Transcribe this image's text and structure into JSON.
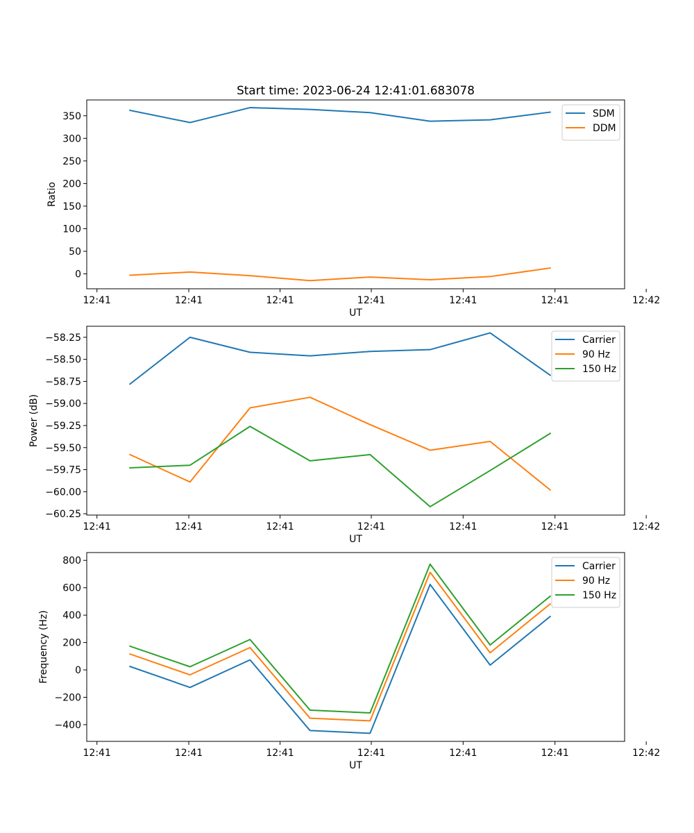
{
  "figure_title": "Start time: 2023-06-24 12:41:01.683078",
  "colors": {
    "blue": "#1f77b4",
    "orange": "#ff7f0e",
    "green": "#2ca02c"
  },
  "chart_data": [
    {
      "type": "line",
      "title": "Start time: 2023-06-24 12:41:01.683078",
      "xlabel": "UT",
      "ylabel": "Ratio",
      "x": [
        1,
        2,
        3,
        4,
        5,
        6,
        7,
        8
      ],
      "xlim": [
        0.28,
        9.24
      ],
      "x_ticks": [
        {
          "pos": 0.45,
          "label": "12:41"
        },
        {
          "pos": 1.98,
          "label": "12:41"
        },
        {
          "pos": 3.5,
          "label": "12:41"
        },
        {
          "pos": 5.02,
          "label": "12:41"
        },
        {
          "pos": 6.55,
          "label": "12:41"
        },
        {
          "pos": 8.08,
          "label": "12:41"
        },
        {
          "pos": 9.6,
          "label": "12:42"
        }
      ],
      "ylim": [
        -33,
        385
      ],
      "y_ticks": [
        {
          "pos": 0,
          "label": "0"
        },
        {
          "pos": 50,
          "label": "50"
        },
        {
          "pos": 100,
          "label": "100"
        },
        {
          "pos": 150,
          "label": "150"
        },
        {
          "pos": 200,
          "label": "200"
        },
        {
          "pos": 250,
          "label": "250"
        },
        {
          "pos": 300,
          "label": "300"
        },
        {
          "pos": 350,
          "label": "350"
        }
      ],
      "legend": "top-right",
      "series": [
        {
          "name": "SDM",
          "color": "#1f77b4",
          "values": [
            362,
            335,
            368,
            364,
            357,
            338,
            341,
            358
          ]
        },
        {
          "name": "DDM",
          "color": "#ff7f0e",
          "values": [
            -3,
            4,
            -4,
            -15,
            -7,
            -13,
            -6,
            13
          ]
        }
      ]
    },
    {
      "type": "line",
      "title": "",
      "xlabel": "UT",
      "ylabel": "Power (dB)",
      "x": [
        1,
        2,
        3,
        4,
        5,
        6,
        7,
        8
      ],
      "xlim": [
        0.28,
        9.24
      ],
      "x_ticks": [
        {
          "pos": 0.45,
          "label": "12:41"
        },
        {
          "pos": 1.98,
          "label": "12:41"
        },
        {
          "pos": 3.5,
          "label": "12:41"
        },
        {
          "pos": 5.02,
          "label": "12:41"
        },
        {
          "pos": 6.55,
          "label": "12:41"
        },
        {
          "pos": 8.08,
          "label": "12:41"
        },
        {
          "pos": 9.6,
          "label": "12:42"
        }
      ],
      "ylim": [
        -60.265,
        -58.125
      ],
      "y_ticks": [
        {
          "pos": -60.25,
          "label": "−60.25"
        },
        {
          "pos": -60.0,
          "label": "−60.00"
        },
        {
          "pos": -59.75,
          "label": "−59.75"
        },
        {
          "pos": -59.5,
          "label": "−59.50"
        },
        {
          "pos": -59.25,
          "label": "−59.25"
        },
        {
          "pos": -59.0,
          "label": "−59.00"
        },
        {
          "pos": -58.75,
          "label": "−58.75"
        },
        {
          "pos": -58.5,
          "label": "−58.50"
        },
        {
          "pos": -58.25,
          "label": "−58.25"
        }
      ],
      "legend": "top-right",
      "series": [
        {
          "name": "Carrier",
          "color": "#1f77b4",
          "values": [
            -58.78,
            -58.25,
            -58.42,
            -58.46,
            -58.41,
            -58.39,
            -58.2,
            -58.68
          ]
        },
        {
          "name": "90 Hz",
          "color": "#ff7f0e",
          "values": [
            -59.58,
            -59.89,
            -59.05,
            -58.93,
            -59.24,
            -59.53,
            -59.43,
            -59.98
          ]
        },
        {
          "name": "150 Hz",
          "color": "#2ca02c",
          "values": [
            -59.73,
            -59.7,
            -59.26,
            -59.65,
            -59.58,
            -60.17,
            -59.76,
            -59.34
          ]
        }
      ]
    },
    {
      "type": "line",
      "title": "",
      "xlabel": "UT",
      "ylabel": "Frequency (Hz)",
      "x": [
        1,
        2,
        3,
        4,
        5,
        6,
        7,
        8
      ],
      "xlim": [
        0.28,
        9.24
      ],
      "x_ticks": [
        {
          "pos": 0.45,
          "label": "12:41"
        },
        {
          "pos": 1.98,
          "label": "12:41"
        },
        {
          "pos": 3.5,
          "label": "12:41"
        },
        {
          "pos": 5.02,
          "label": "12:41"
        },
        {
          "pos": 6.55,
          "label": "12:41"
        },
        {
          "pos": 8.08,
          "label": "12:41"
        },
        {
          "pos": 9.6,
          "label": "12:42"
        }
      ],
      "ylim": [
        -522,
        857
      ],
      "y_ticks": [
        {
          "pos": -400,
          "label": "−400"
        },
        {
          "pos": -200,
          "label": "−200"
        },
        {
          "pos": 0,
          "label": "0"
        },
        {
          "pos": 200,
          "label": "200"
        },
        {
          "pos": 400,
          "label": "400"
        },
        {
          "pos": 600,
          "label": "600"
        },
        {
          "pos": 800,
          "label": "800"
        }
      ],
      "legend": "top-right",
      "series": [
        {
          "name": "Carrier",
          "color": "#1f77b4",
          "values": [
            25,
            -128,
            73,
            -443,
            -463,
            624,
            35,
            390
          ]
        },
        {
          "name": "90 Hz",
          "color": "#ff7f0e",
          "values": [
            116,
            -36,
            163,
            -353,
            -372,
            713,
            125,
            482
          ]
        },
        {
          "name": "150 Hz",
          "color": "#2ca02c",
          "values": [
            173,
            23,
            222,
            -294,
            -314,
            772,
            182,
            538
          ]
        }
      ]
    }
  ]
}
